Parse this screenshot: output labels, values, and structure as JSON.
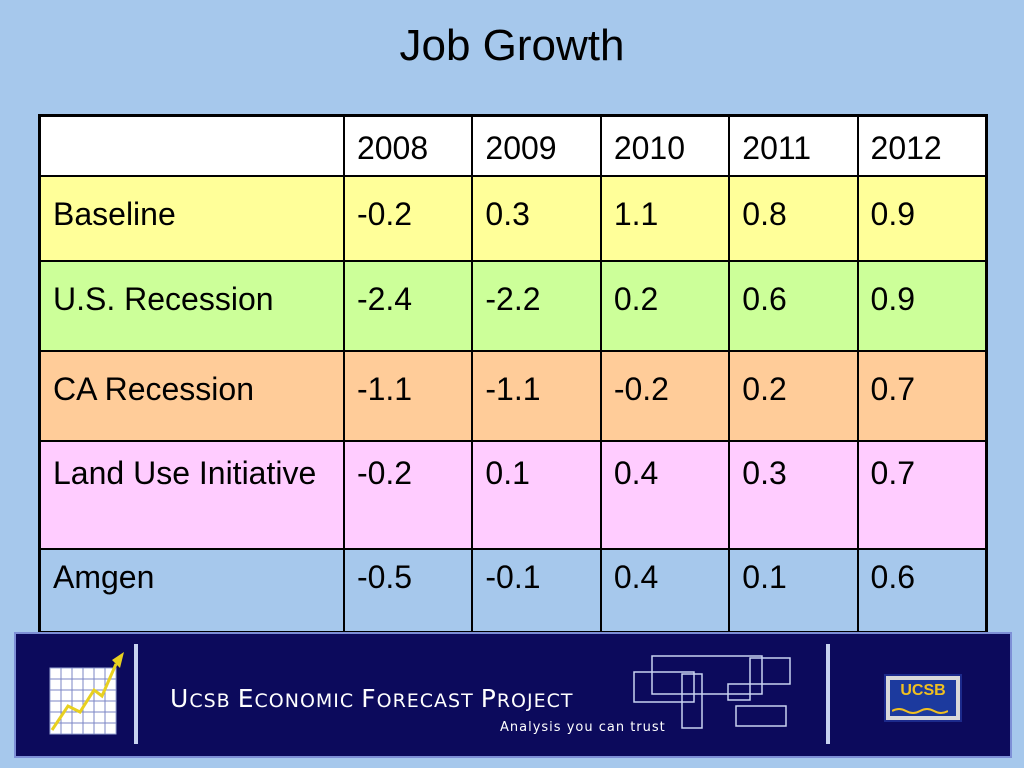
{
  "title": "Job Growth",
  "table": {
    "corner": "",
    "columns": [
      "2008",
      "2009",
      "2010",
      "2011",
      "2012"
    ],
    "rows": [
      {
        "label": "Baseline",
        "values": [
          "-0.2",
          "0.3",
          "1.1",
          "0.8",
          "0.9"
        ],
        "color": "#ffff99"
      },
      {
        "label": "U.S. Recession",
        "values": [
          "-2.4",
          "-2.2",
          "0.2",
          "0.6",
          "0.9"
        ],
        "color": "#ccff99"
      },
      {
        "label": "CA Recession",
        "values": [
          "-1.1",
          "-1.1",
          "-0.2",
          "0.2",
          "0.7"
        ],
        "color": "#ffcc99"
      },
      {
        "label": "Land Use Initiative",
        "values": [
          "-0.2",
          "0.1",
          "0.4",
          "0.3",
          "0.7"
        ],
        "color": "#ffccff"
      },
      {
        "label": "Amgen",
        "values": [
          "-0.5",
          "-0.1",
          "0.4",
          "0.1",
          "0.6"
        ],
        "color": "#a6c8ec"
      }
    ]
  },
  "footer": {
    "brand_first_u": "U",
    "brand_rest_1": "CSB ",
    "brand_big_e": "E",
    "brand_rest_2": "CONOMIC ",
    "brand_big_f": "F",
    "brand_rest_3": "ORECAST ",
    "brand_big_p": "P",
    "brand_rest_4": "ROJECT",
    "tagline": "Analysis you can trust",
    "logo_text": "UCSB",
    "colors": {
      "background": "#0c0a5c",
      "accent": "#f0c020"
    }
  },
  "icons": [
    "growth-chart-icon",
    "overlapping-boxes-icon",
    "ucsb-logo"
  ]
}
